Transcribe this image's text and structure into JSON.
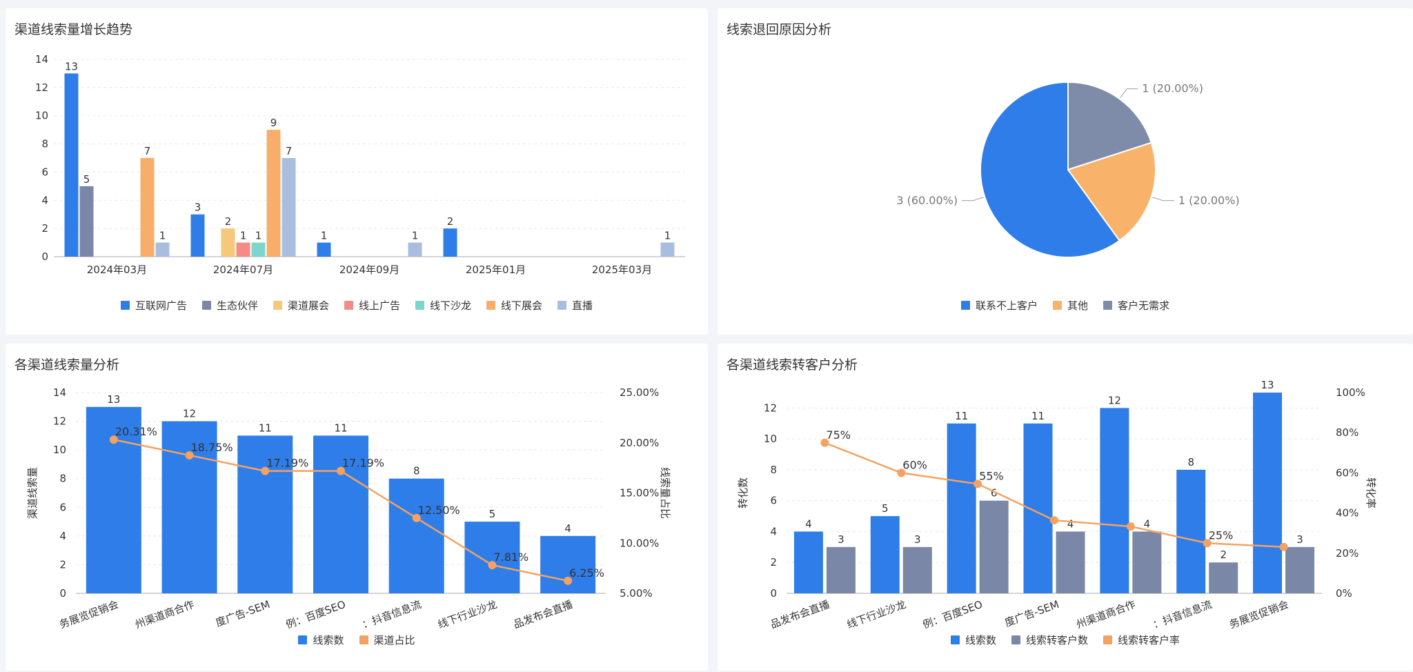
{
  "panels": {
    "trend": {
      "title": "渠道线索量增长趋势",
      "legend": [
        "互联网广告",
        "生态伙伴",
        "渠道展会",
        "线上广告",
        "线下沙龙",
        "线下展会",
        "直播"
      ]
    },
    "return_reason": {
      "title": "线索退回原因分析",
      "legend": [
        "联系不上客户",
        "其他",
        "客户无需求"
      ]
    },
    "channel_volume": {
      "title": "各渠道线索量分析",
      "legend": [
        "线索数",
        "渠道占比"
      ]
    },
    "conversion": {
      "title": "各渠道线索转客户分析",
      "legend": [
        "线索数",
        "线索转客户数",
        "线索转客户率"
      ]
    }
  },
  "chart_data": [
    {
      "type": "bar",
      "title": "渠道线索量增长趋势",
      "categories": [
        "2024年03月",
        "2024年07月",
        "2024年09月",
        "2025年01月",
        "2025年03月"
      ],
      "ylim": [
        0,
        14
      ],
      "yticks": [
        "0",
        "2",
        "4",
        "6",
        "8",
        "10",
        "12",
        "14"
      ],
      "grid": true,
      "legend_position": "bottom",
      "series": [
        {
          "name": "互联网广告",
          "color": "#2f7de8",
          "values": [
            13,
            3,
            1,
            2,
            null
          ]
        },
        {
          "name": "生态伙伴",
          "color": "#7b87a6",
          "values": [
            5,
            null,
            null,
            null,
            null
          ]
        },
        {
          "name": "渠道展会",
          "color": "#f6c87a",
          "values": [
            null,
            2,
            null,
            null,
            null
          ]
        },
        {
          "name": "线上广告",
          "color": "#f48b84",
          "values": [
            null,
            1,
            null,
            null,
            null
          ]
        },
        {
          "name": "线下沙龙",
          "color": "#7dd6cc",
          "values": [
            null,
            1,
            null,
            null,
            null
          ]
        },
        {
          "name": "线下展会",
          "color": "#f7ae6b",
          "values": [
            7,
            9,
            null,
            null,
            null
          ]
        },
        {
          "name": "直播",
          "color": "#a9bedf",
          "values": [
            1,
            7,
            1,
            null,
            1
          ]
        }
      ]
    },
    {
      "type": "pie",
      "title": "线索退回原因分析",
      "legend_position": "bottom",
      "slices": [
        {
          "name": "联系不上客户",
          "value": 3,
          "label": "3 (60.00%)",
          "color": "#2f7de8"
        },
        {
          "name": "其他",
          "value": 1,
          "label": "1 (20.00%)",
          "color": "#f8b26a"
        },
        {
          "name": "客户无需求",
          "value": 1,
          "label": "1 (20.00%)",
          "color": "#7e8ba9"
        }
      ]
    },
    {
      "type": "bar",
      "title": "各渠道线索量分析",
      "categories": [
        "服务展览促销会",
        "杭州渠道商合作",
        "百度广告-SEM",
        "示例：百度SEO",
        "示例：抖音信息流",
        "线下行业沙龙",
        "产品发布会直播"
      ],
      "visible_category_labels": [
        "务展览促销会",
        "州渠道商合作",
        "度广告-SEM",
        "例：百度SEO",
        "：抖音信息流",
        "线下行业沙龙",
        "品发布会直播"
      ],
      "ylabel": "渠道线索量",
      "y2label": "线索量占比",
      "ylim": [
        0,
        14
      ],
      "yticks": [
        "0",
        "2",
        "4",
        "6",
        "8",
        "10",
        "12",
        "14"
      ],
      "y2lim": [
        5,
        25
      ],
      "y2ticks": [
        "5.00%",
        "10.00%",
        "15.00%",
        "20.00%",
        "25.00%"
      ],
      "grid": true,
      "legend_position": "bottom",
      "series": [
        {
          "name": "线索数",
          "type": "bar",
          "color": "#2f7de8",
          "values": [
            13,
            12,
            11,
            11,
            8,
            5,
            4
          ],
          "labels": [
            "13",
            "12",
            "11",
            "11",
            "8",
            "5",
            "4"
          ]
        },
        {
          "name": "渠道占比",
          "type": "line",
          "color": "#f4a261",
          "values": [
            20.31,
            18.75,
            17.19,
            17.19,
            12.5,
            7.81,
            6.25
          ],
          "labels": [
            "20.31%",
            "18.75%",
            "17.19%",
            "17.19%",
            "12.50%",
            "7.81%",
            "6.25%"
          ]
        }
      ]
    },
    {
      "type": "bar",
      "title": "各渠道线索转客户分析",
      "categories": [
        "产品发布会直播",
        "线下行业沙龙",
        "示例：百度SEO",
        "百度广告-SEM",
        "杭州渠道商合作",
        "示例：抖音信息流",
        "服务展览促销会"
      ],
      "visible_category_labels": [
        "品发布会直播",
        "线下行业沙龙",
        "例：百度SEO",
        "度广告-SEM",
        "州渠道商合作",
        "：抖音信息流",
        "务展览促销会"
      ],
      "ylabel": "转化数",
      "y2label": "转化率",
      "ylim": [
        0,
        13
      ],
      "yticks": [
        "0",
        "2",
        "4",
        "6",
        "8",
        "10",
        "12"
      ],
      "y2lim": [
        0,
        100
      ],
      "y2ticks": [
        "0%",
        "20%",
        "40%",
        "60%",
        "80%",
        "100%"
      ],
      "grid": true,
      "legend_position": "bottom",
      "series": [
        {
          "name": "线索数",
          "type": "bar",
          "color": "#2f7de8",
          "values": [
            4,
            5,
            11,
            11,
            12,
            8,
            13
          ],
          "labels": [
            "4",
            "5",
            "11",
            "11",
            "12",
            "8",
            "13"
          ]
        },
        {
          "name": "线索转客户数",
          "type": "bar",
          "color": "#7b87a6",
          "values": [
            3,
            3,
            6,
            4,
            4,
            2,
            3
          ],
          "labels": [
            "3",
            "3",
            "6",
            "4",
            "4",
            "2",
            "3"
          ]
        },
        {
          "name": "线索转客户率",
          "type": "line",
          "color": "#f4a261",
          "values": [
            75,
            60,
            54.5,
            36.4,
            33.3,
            25,
            23.1
          ],
          "labels": [
            "75%",
            "60%",
            "55%",
            "",
            "",
            "25%",
            ""
          ]
        }
      ]
    }
  ]
}
